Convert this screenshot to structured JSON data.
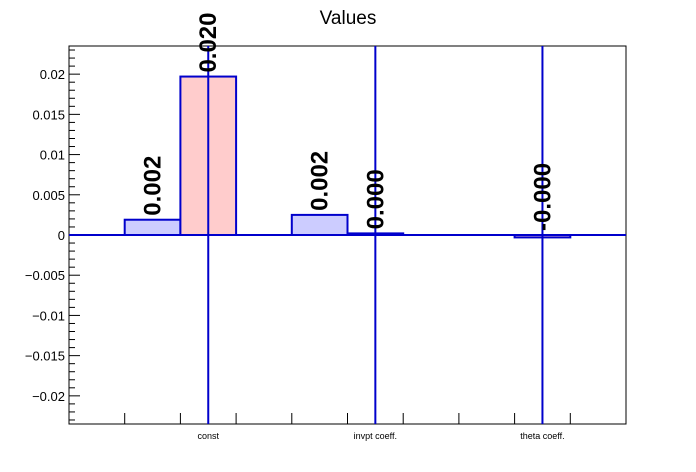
{
  "chart_data": {
    "type": "bar",
    "title": "Values",
    "categories": [
      "const",
      "invpt coeff.",
      "theta coeff."
    ],
    "ylim": [
      -0.0235,
      0.0235
    ],
    "yticks": [
      -0.02,
      -0.015,
      -0.01,
      -0.005,
      0,
      0.005,
      0.01,
      0.015,
      0.02
    ],
    "ytick_labels": [
      "−0.02",
      "−0.015",
      "−0.01",
      "−0.005",
      "0",
      "0.005",
      "0.01",
      "0.015",
      "0.02"
    ],
    "grid": false,
    "bars": [
      {
        "category": "const",
        "slot": 0,
        "value": 0.0019,
        "label": "0.002",
        "color": "#ccccff",
        "stroke": "#0000cc"
      },
      {
        "category": "const",
        "slot": 1,
        "value": 0.0197,
        "label": "0.020",
        "color": "#ffcccc",
        "stroke": "#0000cc"
      },
      {
        "category": "invpt coeff.",
        "slot": 0,
        "value": 0.0025,
        "label": "0.002",
        "color": "#ccccff",
        "stroke": "#0000cc"
      },
      {
        "category": "invpt coeff.",
        "slot": 1,
        "value": 0.0002,
        "label": "0.000",
        "color": "#ffcccc",
        "stroke": "#0000cc"
      },
      {
        "category": "theta coeff.",
        "slot": 1,
        "value": -0.0003,
        "label": "-0.000",
        "color": "#ffcccc",
        "stroke": "#0000cc"
      }
    ],
    "error_bars": [
      {
        "category": "const",
        "slot": 1,
        "value": 0.0197
      },
      {
        "category": "invpt coeff.",
        "slot": 1,
        "value": 0.0002
      },
      {
        "category": "theta coeff.",
        "slot": 1,
        "value": -0.0003
      }
    ]
  }
}
